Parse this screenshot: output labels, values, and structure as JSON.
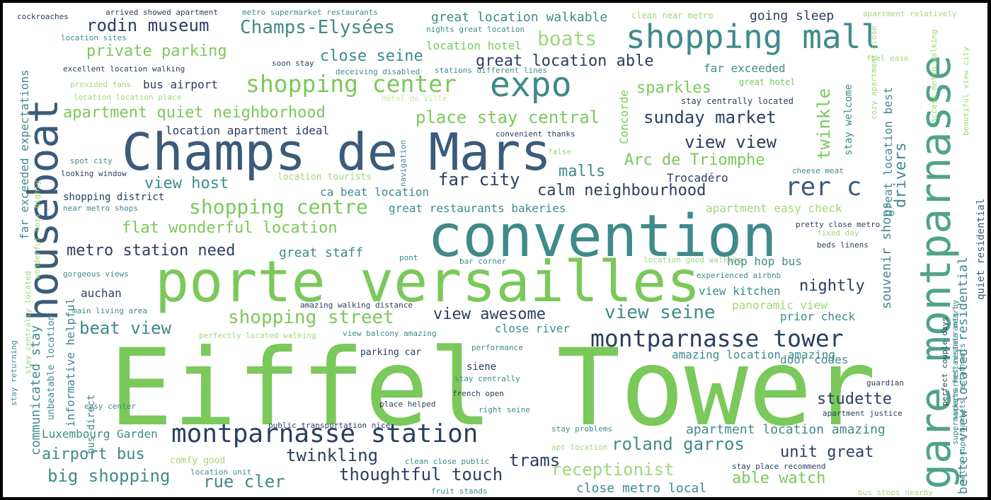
{
  "palette": {
    "navy": "#2a3f5f",
    "steel": "#3b5b7a",
    "teal": "#3f8a8a",
    "sea": "#4fa38a",
    "green": "#7ac95a",
    "light": "#9fd77a",
    "pale": "#c6e7a6"
  },
  "words": [
    "Eiffel Tower",
    "porte versailles",
    "convention",
    "Champs de Mars",
    "gare montparnasse",
    "houseboat",
    "shopping mall",
    "expo",
    "montparnasse station",
    "montparnasse tower",
    "shopping center",
    "rer c",
    "Champs-Elysées",
    "shopping centre",
    "shopping street",
    "view seine",
    "roland garros",
    "view view",
    "big shopping",
    "rue cler",
    "thoughtful touch",
    "sunday market",
    "boats",
    "rodin museum",
    "apartment quiet neighborhood",
    "flat wonderful location",
    "place stay central",
    "calm neighbourhood",
    "beat view",
    "view awesome",
    "nightly",
    "studette",
    "twinkling",
    "trams",
    "airport bus",
    "unit great",
    "receptionist",
    "able watch",
    "far city",
    "view host",
    "metro station need",
    "private parking",
    "great location able",
    "close seine",
    "sparkles",
    "malls",
    "Arc de Triomphe",
    "twinkle",
    "drivers",
    "great location walkable",
    "going sleep",
    "apartment location amazing",
    "great restaurants bakeries",
    "ca beat location",
    "souvenir shops",
    "better view located residential",
    "quiet residential",
    "close metro local",
    "Luxembourg Garden",
    "communicated stay",
    "informative helpful",
    "auchan",
    "great staff",
    "view kitchen",
    "prior check",
    "close river",
    "amazing location amazing",
    "apartment easy check",
    "panoramic view",
    "hop hop bus",
    "door codes",
    "bus airport",
    "location apartment ideal",
    "Trocadéro",
    "Concorde",
    "location hotel",
    "far exceeded",
    "great hotel",
    "stay welcome",
    "great location best",
    "far exceeded expectations",
    "shopping district",
    "cockroaches",
    "arrived showed apartment",
    "metro supermarket restaurants",
    "clean near metro",
    "apartment relatively",
    "location sites",
    "nights great location",
    "soon stay",
    "excellent location walking",
    "deceiving disabled",
    "stations different lines",
    "feel ease",
    "provided fans",
    "location location place",
    "Hôtel de Ville",
    "stay centrally located",
    "convenient thanks",
    "spot city",
    "looking window",
    "near metro shops",
    "location tourists",
    "false",
    "cheese meat",
    "navigation",
    "pretty close metro",
    "fixed day",
    "beds linens",
    "pont",
    "bar corner",
    "location good walking",
    "experienced airbnb",
    "gorgeous views",
    "main living area",
    "amazing walking distance",
    "perfectly located walking",
    "view balcony amazing",
    "performance",
    "parking car",
    "siene",
    "stay centrally",
    "french open",
    "right seine",
    "place helped",
    "public transportation nice",
    "stay problems",
    "apt location",
    "comfy good",
    "clean close public",
    "location unit",
    "fruit stands",
    "bus stops nearby",
    "stay place recommend",
    "apartment justice",
    "guardian",
    "stay returning",
    "stay centrally located",
    "easy center",
    "unbeatable location",
    "bus direct",
    "wonderful host highly",
    "cozy apartment close",
    "supermarkets restaurants nearby",
    "beautiful view city",
    "access metro walking",
    "perfect couple days",
    "metro supermarkets restaurants",
    "supermarket restaurants"
  ]
}
